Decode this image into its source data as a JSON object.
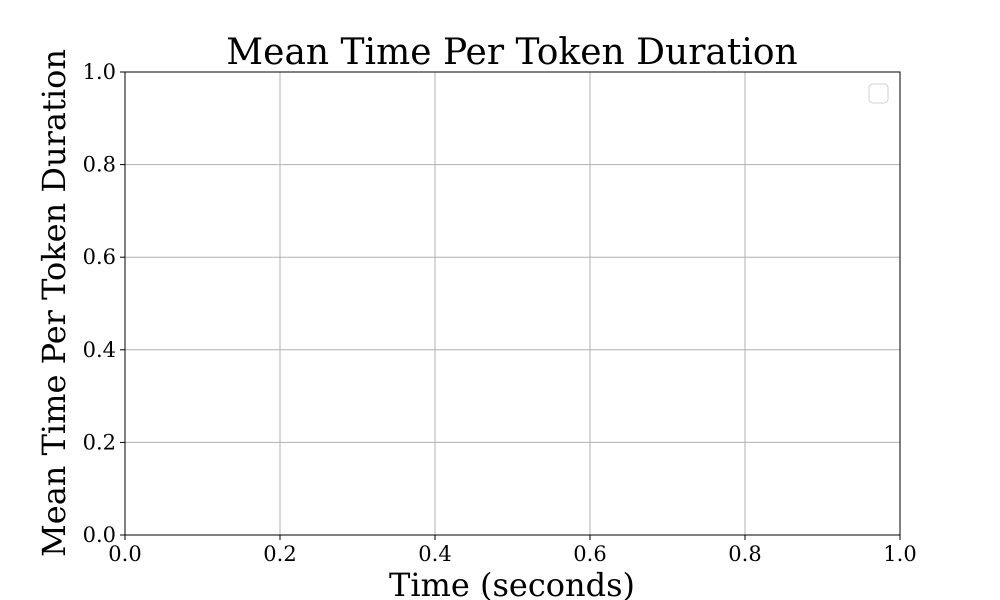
{
  "chart_data": {
    "type": "line",
    "title": "Mean Time Per Token Duration",
    "xlabel": "Time (seconds)",
    "ylabel": "Mean Time Per Token Duration",
    "xlim": [
      0.0,
      1.0
    ],
    "ylim": [
      0.0,
      1.0
    ],
    "xticks": [
      "0.0",
      "0.2",
      "0.4",
      "0.6",
      "0.8",
      "1.0"
    ],
    "yticks": [
      "0.0",
      "0.2",
      "0.4",
      "0.6",
      "0.8",
      "1.0"
    ],
    "grid": true,
    "legend_position": "top-right",
    "series": []
  }
}
